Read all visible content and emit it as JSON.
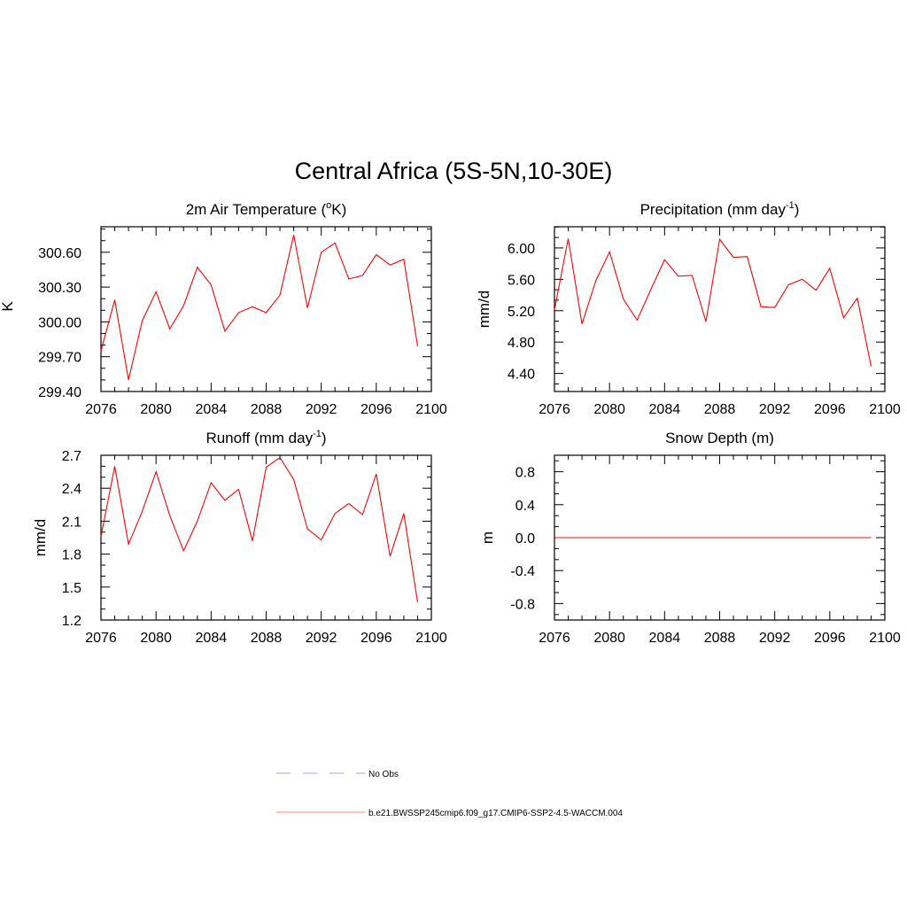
{
  "figure": {
    "title": "Central Africa (5S-5N,10-30E)"
  },
  "legend": {
    "items": [
      {
        "label": "No Obs",
        "style": "dashed",
        "color": "#a0a0e0"
      },
      {
        "label": "b.e21.BWSSP245cmip6.f09_g17.CMIP6-SSP2-4.5-WACCM.004",
        "style": "solid",
        "color": "#ff8080"
      }
    ]
  },
  "chart_data": [
    {
      "type": "line",
      "title": "2m Air Temperature (",
      "title_sup": "o",
      "title_tail": "K)",
      "ylabel": "K",
      "xlim": [
        2076,
        2100
      ],
      "ylim": [
        299.4,
        300.82
      ],
      "xticks": [
        "2076",
        "2080",
        "2084",
        "2088",
        "2092",
        "2096",
        "2100"
      ],
      "yticks": [
        "299.40",
        "299.70",
        "300.00",
        "300.30",
        "300.60"
      ],
      "color": "#ff0000",
      "x": [
        2076,
        2077,
        2078,
        2079,
        2080,
        2081,
        2082,
        2083,
        2084,
        2085,
        2086,
        2087,
        2088,
        2089,
        2090,
        2091,
        2092,
        2093,
        2094,
        2095,
        2096,
        2097,
        2098,
        2099
      ],
      "values": [
        299.75,
        300.19,
        299.5,
        300.01,
        300.26,
        299.94,
        300.14,
        300.47,
        300.32,
        299.92,
        300.08,
        300.13,
        300.08,
        300.23,
        300.75,
        300.12,
        300.6,
        300.68,
        300.37,
        300.4,
        300.58,
        300.49,
        300.54,
        299.79
      ]
    },
    {
      "type": "line",
      "title": "Precipitation (mm day",
      "title_sup": "-1",
      "title_tail": ")",
      "ylabel": "mm/d",
      "xlim": [
        2076,
        2100
      ],
      "ylim": [
        4.17,
        6.27
      ],
      "xticks": [
        "2076",
        "2080",
        "2084",
        "2088",
        "2092",
        "2096",
        "2100"
      ],
      "yticks": [
        "4.40",
        "4.80",
        "5.20",
        "5.60",
        "6.00"
      ],
      "color": "#ff0000",
      "x": [
        2076,
        2077,
        2078,
        2079,
        2080,
        2081,
        2082,
        2083,
        2084,
        2085,
        2086,
        2087,
        2088,
        2089,
        2090,
        2091,
        2092,
        2093,
        2094,
        2095,
        2096,
        2097,
        2098,
        2099
      ],
      "values": [
        5.21,
        6.12,
        5.03,
        5.58,
        5.95,
        5.35,
        5.08,
        5.47,
        5.85,
        5.64,
        5.65,
        5.06,
        6.11,
        5.88,
        5.89,
        5.25,
        5.24,
        5.53,
        5.6,
        5.46,
        5.74,
        5.11,
        5.36,
        4.49
      ]
    },
    {
      "type": "line",
      "title": "Runoff (mm day",
      "title_sup": "-1",
      "title_tail": ")",
      "ylabel": "mm/d",
      "xlim": [
        2076,
        2100
      ],
      "ylim": [
        1.2,
        2.7
      ],
      "xticks": [
        "2076",
        "2080",
        "2084",
        "2088",
        "2092",
        "2096",
        "2100"
      ],
      "yticks": [
        "1.2",
        "1.5",
        "1.8",
        "2.1",
        "2.4",
        "2.7"
      ],
      "color": "#ff0000",
      "x": [
        2076,
        2077,
        2078,
        2079,
        2080,
        2081,
        2082,
        2083,
        2084,
        2085,
        2086,
        2087,
        2088,
        2089,
        2090,
        2091,
        2092,
        2093,
        2094,
        2095,
        2096,
        2097,
        2098,
        2099
      ],
      "values": [
        1.96,
        2.6,
        1.89,
        2.19,
        2.55,
        2.15,
        1.83,
        2.1,
        2.45,
        2.29,
        2.39,
        1.92,
        2.59,
        2.68,
        2.48,
        2.03,
        1.93,
        2.17,
        2.26,
        2.16,
        2.53,
        1.78,
        2.17,
        1.36
      ]
    },
    {
      "type": "line",
      "title": "Snow Depth (m)",
      "title_sup": "",
      "title_tail": "",
      "ylabel": "m",
      "xlim": [
        2076,
        2100
      ],
      "ylim": [
        -1.0,
        1.0
      ],
      "xticks": [
        "2076",
        "2080",
        "2084",
        "2088",
        "2092",
        "2096",
        "2100"
      ],
      "yticks": [
        "-0.8",
        "-0.4",
        "0.0",
        "0.4",
        "0.8"
      ],
      "color": "#ff0000",
      "x": [
        2076,
        2077,
        2078,
        2079,
        2080,
        2081,
        2082,
        2083,
        2084,
        2085,
        2086,
        2087,
        2088,
        2089,
        2090,
        2091,
        2092,
        2093,
        2094,
        2095,
        2096,
        2097,
        2098,
        2099
      ],
      "values": [
        0,
        0,
        0,
        0,
        0,
        0,
        0,
        0,
        0,
        0,
        0,
        0,
        0,
        0,
        0,
        0,
        0,
        0,
        0,
        0,
        0,
        0,
        0,
        0
      ]
    }
  ]
}
